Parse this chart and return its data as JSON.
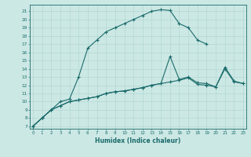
{
  "xlabel": "Humidex (Indice chaleur)",
  "bg_color": "#cce8e4",
  "grid_color": "#aad4d0",
  "line_color": "#1a6b6b",
  "xlim": [
    -0.3,
    23.3
  ],
  "ylim": [
    6.7,
    21.8
  ],
  "yticks": [
    7,
    8,
    9,
    10,
    11,
    12,
    13,
    14,
    15,
    16,
    17,
    18,
    19,
    20,
    21
  ],
  "xticks": [
    0,
    1,
    2,
    3,
    4,
    5,
    6,
    7,
    8,
    9,
    10,
    11,
    12,
    13,
    14,
    15,
    16,
    17,
    18,
    19,
    20,
    21,
    22,
    23
  ],
  "line1_x": [
    0,
    1,
    2,
    3,
    4,
    5,
    6,
    7,
    8,
    9,
    10,
    11,
    12,
    13,
    14,
    15,
    16,
    17,
    18,
    19
  ],
  "line1_y": [
    7.0,
    8.0,
    9.0,
    10.0,
    10.3,
    13.0,
    16.5,
    17.5,
    18.5,
    19.0,
    19.5,
    20.0,
    20.5,
    21.0,
    21.2,
    21.1,
    19.5,
    19.0,
    17.5,
    17.0
  ],
  "line2_x": [
    0,
    1,
    2,
    3,
    4,
    5,
    6,
    7,
    8,
    9,
    10,
    11,
    12,
    13,
    14,
    15,
    16,
    17,
    18,
    19,
    20,
    21,
    22,
    23
  ],
  "line2_y": [
    7.0,
    8.0,
    9.0,
    9.5,
    10.0,
    10.2,
    10.4,
    10.6,
    11.0,
    11.2,
    11.3,
    11.5,
    11.7,
    12.0,
    12.2,
    15.5,
    12.7,
    13.0,
    12.3,
    12.2,
    11.8,
    14.2,
    12.5,
    12.2
  ],
  "line3_x": [
    0,
    1,
    2,
    3,
    4,
    5,
    6,
    7,
    8,
    9,
    10,
    11,
    12,
    13,
    14,
    15,
    16,
    17,
    18,
    19,
    20,
    21,
    22,
    23
  ],
  "line3_y": [
    7.0,
    8.0,
    9.0,
    9.5,
    10.0,
    10.2,
    10.4,
    10.6,
    11.0,
    11.2,
    11.3,
    11.5,
    11.7,
    12.0,
    12.2,
    12.4,
    12.6,
    12.9,
    12.1,
    12.0,
    11.8,
    14.0,
    12.4,
    12.2
  ]
}
